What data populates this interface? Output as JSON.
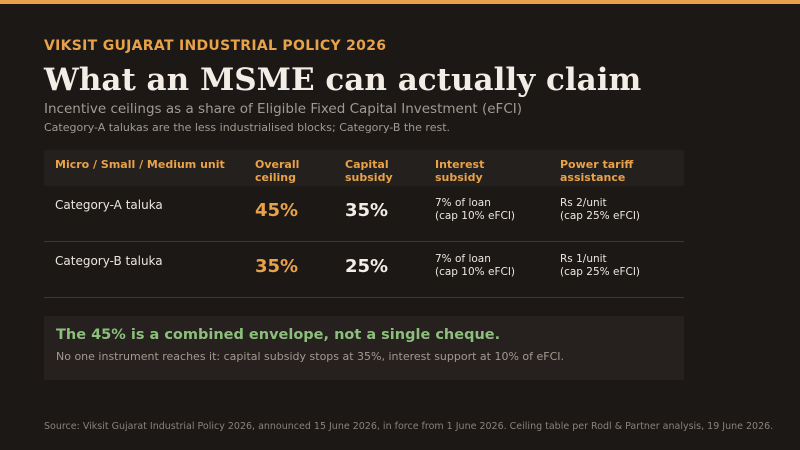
{
  "kicker": "VIKSIT GUJARAT INDUSTRIAL POLICY 2026",
  "title": "What an MSME can actually claim",
  "subtitle": "Incentive ceilings as a share of Eligible Fixed Capital Investment (eFCI)",
  "note": "Category-A talukas are the less industrialised blocks; Category-B the rest.",
  "table": {
    "headers": [
      [
        "Micro / Small / Medium unit"
      ],
      [
        "Overall",
        "ceiling"
      ],
      [
        "Capital",
        "subsidy"
      ],
      [
        "Interest",
        "subsidy"
      ],
      [
        "Power tariff",
        "assistance"
      ]
    ],
    "rows": [
      {
        "label": "Category-A taluka",
        "overall": "45%",
        "capital": "35%",
        "interest": [
          "7% of loan",
          "(cap 10% eFCI)"
        ],
        "power": [
          "Rs 2/unit",
          "(cap 25% eFCI)"
        ]
      },
      {
        "label": "Category-B taluka",
        "overall": "35%",
        "capital": "25%",
        "interest": [
          "7% of loan",
          "(cap 10% eFCI)"
        ],
        "power": [
          "Rs 1/unit",
          "(cap 25% eFCI)"
        ]
      }
    ]
  },
  "callout": {
    "headline": "The 45% is a combined envelope, not a single cheque.",
    "body": "No one instrument reaches it: capital subsidy stops at 35%, interest support at 10% of eFCI."
  },
  "source": "Source: Viksit Gujarat Industrial Policy 2026, announced 15 June 2026, in force from 1 June 2026.  Ceiling table per Rodl & Partner analysis, 19 June 2026.",
  "colors": {
    "background": "#1c1816",
    "accent": "#e8a24a",
    "callout_green": "#8cbf7c"
  }
}
